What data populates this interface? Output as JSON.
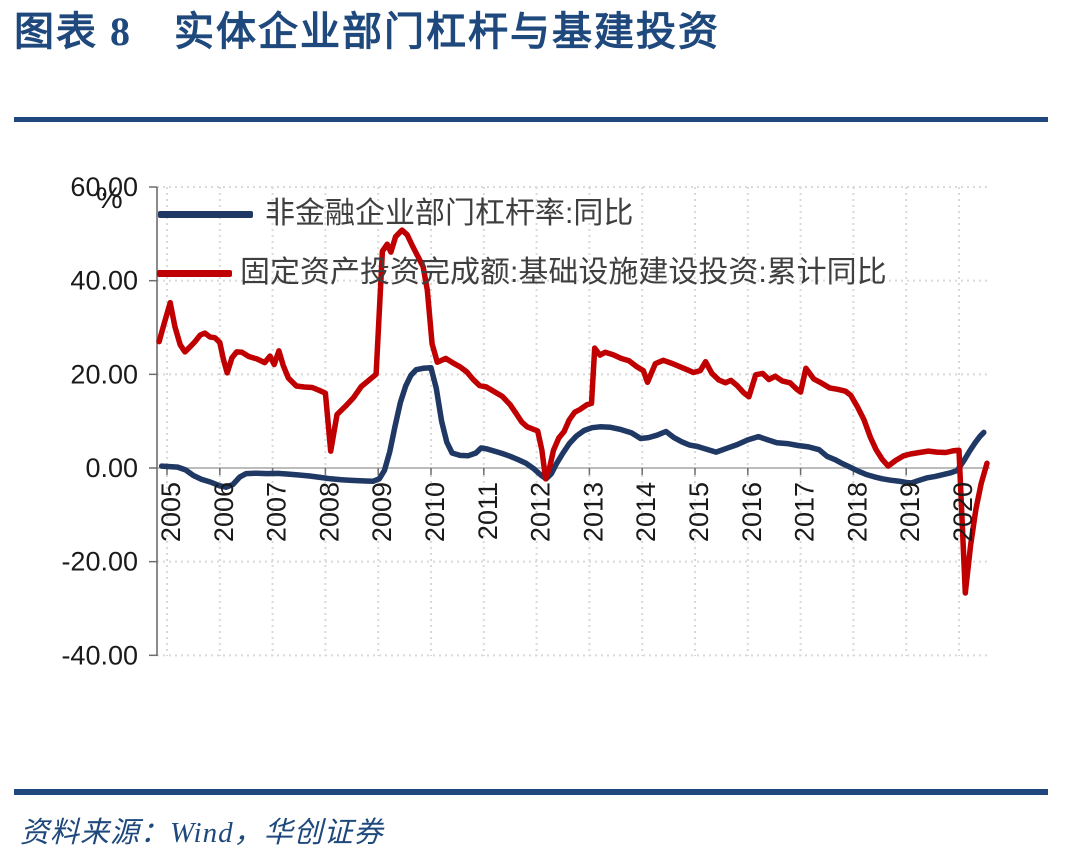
{
  "header": {
    "title": "图表 8　实体企业部门杠杆与基建投资"
  },
  "footer": {
    "source": "资料来源：Wind，华创证券"
  },
  "colors": {
    "accent_navy": "#1F497D",
    "series_navy": "#1F3864",
    "series_red": "#C00000",
    "grid_dotted": "#D9D9D9",
    "zero_line": "#A6A6A6",
    "axis_line": "#6e6e6e",
    "tick_text": "#1a1a1a",
    "legend_text": "#3f3f3f"
  },
  "chart_data": {
    "type": "line",
    "title": "实体企业部门杠杆与基建投资",
    "ylabel": "%",
    "ylim": [
      -40,
      60
    ],
    "yticks": [
      60,
      40,
      20,
      0,
      -20,
      -40
    ],
    "ytick_labels": [
      "60.00",
      "40.00",
      "20.00",
      "0.00",
      "-20.00",
      "-40.00"
    ],
    "xticks": [
      2005,
      2006,
      2007,
      2008,
      2009,
      2010,
      2011,
      2012,
      2013,
      2014,
      2015,
      2016,
      2017,
      2018,
      2019,
      2020
    ],
    "x_range": [
      2004.8,
      2020.6
    ],
    "grid": "light dotted horizontal and vertical gridlines, solid gray zero line",
    "legend_position": "top-left",
    "series": [
      {
        "id": "leverage-yoy",
        "name": "非金融企业部门杠杆率:同比",
        "color": "#1F3864",
        "points": [
          [
            2004.9,
            0.4
          ],
          [
            2005.2,
            0.2
          ],
          [
            2005.35,
            -0.4
          ],
          [
            2005.5,
            -1.6
          ],
          [
            2005.65,
            -2.4
          ],
          [
            2005.82,
            -3.0
          ],
          [
            2006.0,
            -3.8
          ],
          [
            2006.12,
            -4.1
          ],
          [
            2006.25,
            -3.5
          ],
          [
            2006.38,
            -1.9
          ],
          [
            2006.5,
            -1.2
          ],
          [
            2006.7,
            -1.1
          ],
          [
            2006.9,
            -1.2
          ],
          [
            2007.1,
            -1.15
          ],
          [
            2007.3,
            -1.3
          ],
          [
            2007.5,
            -1.5
          ],
          [
            2007.7,
            -1.7
          ],
          [
            2007.9,
            -2.0
          ],
          [
            2008.1,
            -2.3
          ],
          [
            2008.3,
            -2.5
          ],
          [
            2008.5,
            -2.65
          ],
          [
            2008.7,
            -2.75
          ],
          [
            2008.9,
            -2.85
          ],
          [
            2009.02,
            -2.3
          ],
          [
            2009.12,
            -0.5
          ],
          [
            2009.22,
            3.5
          ],
          [
            2009.32,
            9.0
          ],
          [
            2009.42,
            14.0
          ],
          [
            2009.52,
            17.5
          ],
          [
            2009.62,
            19.8
          ],
          [
            2009.72,
            21.0
          ],
          [
            2009.85,
            21.3
          ],
          [
            2010.0,
            21.4
          ],
          [
            2010.1,
            17.0
          ],
          [
            2010.2,
            10.0
          ],
          [
            2010.3,
            5.5
          ],
          [
            2010.4,
            3.2
          ],
          [
            2010.55,
            2.7
          ],
          [
            2010.7,
            2.6
          ],
          [
            2010.85,
            3.2
          ],
          [
            2010.95,
            4.3
          ],
          [
            2011.05,
            4.1
          ],
          [
            2011.2,
            3.6
          ],
          [
            2011.35,
            3.1
          ],
          [
            2011.5,
            2.5
          ],
          [
            2011.65,
            1.8
          ],
          [
            2011.8,
            1.0
          ],
          [
            2011.95,
            -0.2
          ],
          [
            2012.08,
            -1.5
          ],
          [
            2012.18,
            -2.3
          ],
          [
            2012.28,
            -1.2
          ],
          [
            2012.38,
            1.0
          ],
          [
            2012.5,
            3.2
          ],
          [
            2012.62,
            5.2
          ],
          [
            2012.75,
            6.8
          ],
          [
            2012.9,
            8.0
          ],
          [
            2013.05,
            8.6
          ],
          [
            2013.2,
            8.8
          ],
          [
            2013.4,
            8.7
          ],
          [
            2013.6,
            8.2
          ],
          [
            2013.8,
            7.5
          ],
          [
            2013.97,
            6.3
          ],
          [
            2014.12,
            6.5
          ],
          [
            2014.28,
            7.0
          ],
          [
            2014.45,
            7.8
          ],
          [
            2014.6,
            6.5
          ],
          [
            2014.75,
            5.6
          ],
          [
            2014.9,
            4.9
          ],
          [
            2015.05,
            4.6
          ],
          [
            2015.25,
            3.9
          ],
          [
            2015.4,
            3.4
          ],
          [
            2015.6,
            4.2
          ],
          [
            2015.8,
            5.0
          ],
          [
            2016.0,
            6.0
          ],
          [
            2016.2,
            6.7
          ],
          [
            2016.38,
            6.0
          ],
          [
            2016.55,
            5.4
          ],
          [
            2016.75,
            5.2
          ],
          [
            2016.95,
            4.8
          ],
          [
            2017.15,
            4.5
          ],
          [
            2017.35,
            3.9
          ],
          [
            2017.5,
            2.5
          ],
          [
            2017.65,
            1.8
          ],
          [
            2017.8,
            0.9
          ],
          [
            2017.95,
            0.1
          ],
          [
            2018.1,
            -0.7
          ],
          [
            2018.25,
            -1.4
          ],
          [
            2018.4,
            -1.9
          ],
          [
            2018.55,
            -2.3
          ],
          [
            2018.7,
            -2.6
          ],
          [
            2018.85,
            -2.8
          ],
          [
            2019.0,
            -3.1
          ],
          [
            2019.1,
            -3.2
          ],
          [
            2019.25,
            -2.6
          ],
          [
            2019.4,
            -2.1
          ],
          [
            2019.55,
            -1.8
          ],
          [
            2019.7,
            -1.4
          ],
          [
            2019.85,
            -1.0
          ],
          [
            2019.97,
            -0.5
          ],
          [
            2020.1,
            1.7
          ],
          [
            2020.2,
            3.6
          ],
          [
            2020.3,
            5.3
          ],
          [
            2020.4,
            6.8
          ],
          [
            2020.47,
            7.6
          ]
        ]
      },
      {
        "id": "infra-investment-yoy",
        "name": "固定资产投资完成额:基础设施建设投资:累计同比",
        "color": "#C00000",
        "points": [
          [
            2004.85,
            27.0
          ],
          [
            2004.95,
            31.0
          ],
          [
            2005.06,
            35.3
          ],
          [
            2005.15,
            30.2
          ],
          [
            2005.25,
            26.3
          ],
          [
            2005.34,
            24.8
          ],
          [
            2005.44,
            25.9
          ],
          [
            2005.53,
            27.0
          ],
          [
            2005.63,
            28.4
          ],
          [
            2005.72,
            28.8
          ],
          [
            2005.81,
            28.0
          ],
          [
            2005.91,
            27.8
          ],
          [
            2006.0,
            26.8
          ],
          [
            2006.07,
            23.1
          ],
          [
            2006.14,
            20.3
          ],
          [
            2006.23,
            23.5
          ],
          [
            2006.32,
            24.8
          ],
          [
            2006.42,
            24.7
          ],
          [
            2006.55,
            23.8
          ],
          [
            2006.7,
            23.3
          ],
          [
            2006.85,
            22.5
          ],
          [
            2006.95,
            23.9
          ],
          [
            2007.03,
            22.1
          ],
          [
            2007.12,
            25.0
          ],
          [
            2007.2,
            21.9
          ],
          [
            2007.3,
            19.2
          ],
          [
            2007.45,
            17.5
          ],
          [
            2007.6,
            17.3
          ],
          [
            2007.75,
            17.2
          ],
          [
            2007.88,
            16.6
          ],
          [
            2008.0,
            16.0
          ],
          [
            2008.1,
            3.6
          ],
          [
            2008.22,
            11.4
          ],
          [
            2008.38,
            13.2
          ],
          [
            2008.53,
            15.0
          ],
          [
            2008.68,
            17.4
          ],
          [
            2008.83,
            18.8
          ],
          [
            2008.96,
            20.0
          ],
          [
            2009.08,
            46.3
          ],
          [
            2009.17,
            47.8
          ],
          [
            2009.24,
            46.1
          ],
          [
            2009.33,
            49.4
          ],
          [
            2009.45,
            50.8
          ],
          [
            2009.55,
            49.8
          ],
          [
            2009.65,
            47.4
          ],
          [
            2009.75,
            45.2
          ],
          [
            2009.85,
            43.0
          ],
          [
            2009.93,
            38.0
          ],
          [
            2010.02,
            26.5
          ],
          [
            2010.12,
            22.6
          ],
          [
            2010.28,
            23.4
          ],
          [
            2010.42,
            22.4
          ],
          [
            2010.55,
            21.6
          ],
          [
            2010.68,
            20.5
          ],
          [
            2010.8,
            18.9
          ],
          [
            2010.92,
            17.6
          ],
          [
            2011.05,
            17.3
          ],
          [
            2011.2,
            16.3
          ],
          [
            2011.35,
            15.3
          ],
          [
            2011.5,
            13.5
          ],
          [
            2011.62,
            11.5
          ],
          [
            2011.72,
            9.8
          ],
          [
            2011.82,
            8.8
          ],
          [
            2011.93,
            8.3
          ],
          [
            2012.02,
            7.9
          ],
          [
            2012.1,
            3.8
          ],
          [
            2012.17,
            -2.3
          ],
          [
            2012.25,
            0.3
          ],
          [
            2012.32,
            3.8
          ],
          [
            2012.42,
            6.4
          ],
          [
            2012.52,
            7.8
          ],
          [
            2012.62,
            10.3
          ],
          [
            2012.72,
            11.9
          ],
          [
            2012.82,
            12.5
          ],
          [
            2012.95,
            13.5
          ],
          [
            2013.04,
            13.8
          ],
          [
            2013.1,
            25.6
          ],
          [
            2013.2,
            24.1
          ],
          [
            2013.3,
            24.7
          ],
          [
            2013.45,
            24.2
          ],
          [
            2013.6,
            23.4
          ],
          [
            2013.75,
            22.9
          ],
          [
            2013.9,
            21.6
          ],
          [
            2014.02,
            20.8
          ],
          [
            2014.1,
            18.3
          ],
          [
            2014.25,
            22.3
          ],
          [
            2014.4,
            23.0
          ],
          [
            2014.55,
            22.4
          ],
          [
            2014.7,
            21.7
          ],
          [
            2014.85,
            21.0
          ],
          [
            2014.97,
            20.4
          ],
          [
            2015.1,
            20.8
          ],
          [
            2015.2,
            22.7
          ],
          [
            2015.32,
            20.2
          ],
          [
            2015.45,
            18.8
          ],
          [
            2015.58,
            18.2
          ],
          [
            2015.68,
            18.7
          ],
          [
            2015.8,
            17.6
          ],
          [
            2015.92,
            16.1
          ],
          [
            2016.02,
            15.2
          ],
          [
            2016.15,
            19.9
          ],
          [
            2016.28,
            20.2
          ],
          [
            2016.4,
            18.9
          ],
          [
            2016.52,
            19.6
          ],
          [
            2016.65,
            18.6
          ],
          [
            2016.8,
            18.2
          ],
          [
            2016.92,
            16.9
          ],
          [
            2017.0,
            16.2
          ],
          [
            2017.1,
            21.3
          ],
          [
            2017.25,
            19.0
          ],
          [
            2017.4,
            18.1
          ],
          [
            2017.55,
            17.1
          ],
          [
            2017.7,
            16.8
          ],
          [
            2017.85,
            16.4
          ],
          [
            2017.95,
            15.5
          ],
          [
            2018.08,
            13.0
          ],
          [
            2018.2,
            10.3
          ],
          [
            2018.32,
            6.6
          ],
          [
            2018.43,
            3.9
          ],
          [
            2018.55,
            1.8
          ],
          [
            2018.66,
            0.4
          ],
          [
            2018.8,
            1.6
          ],
          [
            2018.95,
            2.6
          ],
          [
            2019.08,
            3.0
          ],
          [
            2019.25,
            3.3
          ],
          [
            2019.42,
            3.6
          ],
          [
            2019.58,
            3.4
          ],
          [
            2019.75,
            3.3
          ],
          [
            2019.9,
            3.7
          ],
          [
            2020.0,
            3.8
          ],
          [
            2020.12,
            -26.7
          ],
          [
            2020.22,
            -16.5
          ],
          [
            2020.32,
            -8.8
          ],
          [
            2020.42,
            -3.3
          ],
          [
            2020.53,
            1.0
          ]
        ]
      }
    ]
  }
}
